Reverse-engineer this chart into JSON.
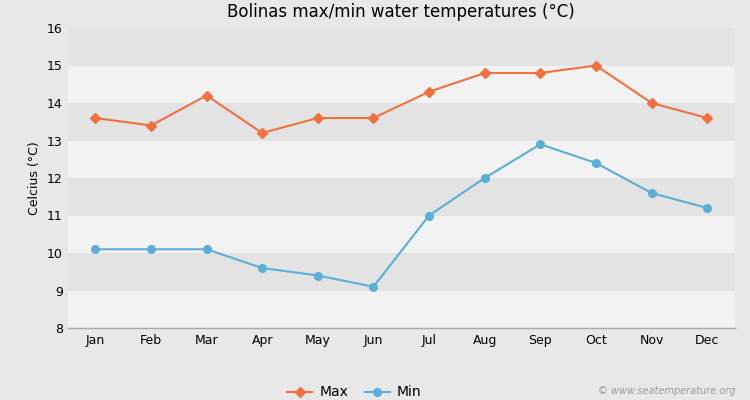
{
  "title": "Bolinas max/min water temperatures (°C)",
  "ylabel": "Celcius (°C)",
  "months": [
    "Jan",
    "Feb",
    "Mar",
    "Apr",
    "May",
    "Jun",
    "Jul",
    "Aug",
    "Sep",
    "Oct",
    "Nov",
    "Dec"
  ],
  "max_temps": [
    13.6,
    13.4,
    14.2,
    13.2,
    13.6,
    13.6,
    14.3,
    14.8,
    14.8,
    15.0,
    14.0,
    13.6
  ],
  "min_temps": [
    10.1,
    10.1,
    10.1,
    9.6,
    9.4,
    9.1,
    11.0,
    12.0,
    12.9,
    12.4,
    11.6,
    11.2
  ],
  "max_color": "#f07040",
  "min_color": "#5bafd6",
  "bg_color": "#e8e8e8",
  "plot_bg_color": "#ebebeb",
  "band_color_light": "#f2f2f2",
  "band_color_dark": "#e3e3e3",
  "ylim": [
    8,
    16
  ],
  "yticks": [
    8,
    9,
    10,
    11,
    12,
    13,
    14,
    15,
    16
  ],
  "watermark": "© www.seatemperature.org",
  "legend_max": "Max",
  "legend_min": "Min"
}
